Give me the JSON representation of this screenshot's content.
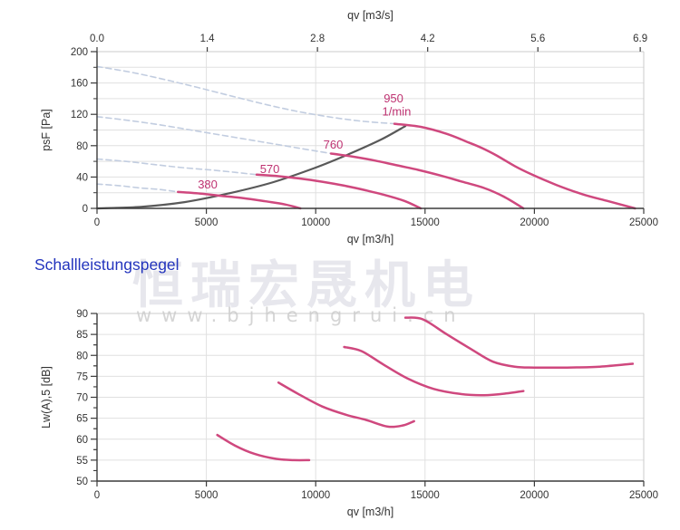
{
  "watermark": {
    "cjk": "恒瑞宏晟机电",
    "url": "www.bjhengrui.cn"
  },
  "heading": {
    "text": "Schallleistungspegel"
  },
  "colors": {
    "pink_curve": "#cf487e",
    "pink_label": "#bf3372",
    "dashed_curve": "#c2cde0",
    "gray_curve": "#595959",
    "grid": "#e0e0e0",
    "frame": "#cbcbcb",
    "axis": "#3b3b3b",
    "text": "#333333",
    "heading_blue": "#2334bd"
  },
  "chart_data": [
    {
      "name": "performance-chart",
      "type": "line",
      "title": "",
      "xlabel": "qv [m3/h]",
      "ylabel": "psF [Pa]",
      "top_xlabel": "qv [m3/s]",
      "xlim": [
        0,
        25000
      ],
      "ylim": [
        0,
        200
      ],
      "x_ticks": [
        0,
        5000,
        10000,
        15000,
        20000,
        25000
      ],
      "y_ticks": [
        0,
        40,
        80,
        120,
        160,
        200
      ],
      "x_grid": 5000,
      "y_grid": 20,
      "y_minor_step": 20,
      "top_ticks": [
        "0.0",
        "1.4",
        "2.8",
        "4.2",
        "5.6",
        "6.9"
      ],
      "top_tick_unit_scale": 3600,
      "legend": "none",
      "grid_on": true,
      "series": [
        {
          "name": "950-1min-unstable",
          "style": "dashed-blue",
          "points": [
            [
              0,
              181
            ],
            [
              1500,
              174
            ],
            [
              3000,
              165
            ],
            [
              4500,
              155
            ],
            [
              6200,
              143
            ],
            [
              7800,
              132
            ],
            [
              9300,
              123
            ],
            [
              10800,
              116
            ],
            [
              12200,
              111
            ],
            [
              13600,
              108
            ]
          ]
        },
        {
          "name": "760-1min-unstable",
          "style": "dashed-blue",
          "points": [
            [
              0,
              117
            ],
            [
              1500,
              112
            ],
            [
              3000,
              106
            ],
            [
              4500,
              99
            ],
            [
              6000,
              92
            ],
            [
              7500,
              85
            ],
            [
              9200,
              77
            ],
            [
              10700,
              70
            ]
          ]
        },
        {
          "name": "570-1min-unstable",
          "style": "dashed-blue",
          "points": [
            [
              0,
              63
            ],
            [
              1300,
              60
            ],
            [
              2600,
              56
            ],
            [
              3900,
              52
            ],
            [
              5200,
              49
            ],
            [
              6300,
              46
            ],
            [
              7300,
              43
            ]
          ]
        },
        {
          "name": "380-1min-unstable",
          "style": "dashed-blue",
          "points": [
            [
              0,
              31
            ],
            [
              1000,
              29
            ],
            [
              2000,
              26
            ],
            [
              2900,
              24
            ],
            [
              3700,
              21
            ]
          ]
        },
        {
          "name": "system-resistance-curve",
          "style": "solid-gray",
          "points": [
            [
              0,
              0
            ],
            [
              2000,
              2
            ],
            [
              4000,
              8
            ],
            [
              6000,
              19
            ],
            [
              8000,
              33
            ],
            [
              10000,
              52
            ],
            [
              11500,
              69
            ],
            [
              13000,
              88
            ],
            [
              14100,
              105
            ]
          ]
        },
        {
          "name": "950-1min",
          "style": "solid-pink",
          "points": [
            [
              13600,
              108
            ],
            [
              14800,
              104
            ],
            [
              16000,
              95
            ],
            [
              17000,
              84
            ],
            [
              17600,
              77
            ],
            [
              18300,
              67
            ],
            [
              19100,
              54
            ],
            [
              19900,
              43
            ],
            [
              21000,
              30
            ],
            [
              22200,
              18
            ],
            [
              23400,
              9
            ],
            [
              24600,
              0
            ]
          ]
        },
        {
          "name": "760-1min",
          "style": "solid-pink",
          "points": [
            [
              10700,
              70
            ],
            [
              11700,
              66
            ],
            [
              12700,
              61
            ],
            [
              13700,
              55
            ],
            [
              14700,
              49
            ],
            [
              15700,
              42
            ],
            [
              16700,
              34
            ],
            [
              17700,
              26
            ],
            [
              18600,
              15
            ],
            [
              19500,
              0
            ]
          ]
        },
        {
          "name": "570-1min",
          "style": "solid-pink",
          "points": [
            [
              7300,
              43
            ],
            [
              8300,
              41
            ],
            [
              9300,
              38
            ],
            [
              10300,
              34
            ],
            [
              11300,
              29
            ],
            [
              12300,
              23
            ],
            [
              13300,
              16
            ],
            [
              14100,
              9
            ],
            [
              14800,
              0
            ]
          ]
        },
        {
          "name": "380-1min",
          "style": "solid-pink",
          "points": [
            [
              3700,
              21
            ],
            [
              4700,
              19
            ],
            [
              5700,
              16
            ],
            [
              6700,
              13
            ],
            [
              7700,
              9
            ],
            [
              8600,
              5
            ],
            [
              9300,
              0
            ]
          ]
        }
      ],
      "annotations": [
        {
          "text": "380",
          "x": 5060,
          "y": 30
        },
        {
          "text": "570",
          "x": 7900,
          "y": 50
        },
        {
          "text": "760",
          "x": 10800,
          "y": 81
        },
        {
          "text": "950",
          "x": 13560,
          "y": 140
        },
        {
          "text": "1/min",
          "x": 13700,
          "y": 123
        }
      ]
    },
    {
      "name": "sound-chart",
      "type": "line",
      "title": "Schallleistungspegel",
      "xlabel": "qv [m3/h]",
      "ylabel": "Lw(A),5 [dB]",
      "xlim": [
        0,
        25000
      ],
      "ylim": [
        50,
        90
      ],
      "x_ticks": [
        0,
        5000,
        10000,
        15000,
        20000,
        25000
      ],
      "y_ticks": [
        50,
        55,
        60,
        65,
        70,
        75,
        80,
        85,
        90
      ],
      "x_grid": 5000,
      "y_grid": 5,
      "y_minor_step": 2.5,
      "legend": "none",
      "grid_on": true,
      "series": [
        {
          "name": "380-1min-sound",
          "style": "solid-pink",
          "points": [
            [
              5500,
              61
            ],
            [
              6300,
              58.5
            ],
            [
              7200,
              56.5
            ],
            [
              8200,
              55.3
            ],
            [
              9000,
              55
            ],
            [
              9700,
              55
            ]
          ]
        },
        {
          "name": "570-1min-sound",
          "style": "solid-pink",
          "points": [
            [
              8300,
              73.5
            ],
            [
              9200,
              70.8
            ],
            [
              10300,
              67.8
            ],
            [
              11400,
              65.8
            ],
            [
              12300,
              64.6
            ],
            [
              13300,
              63
            ],
            [
              14000,
              63.3
            ],
            [
              14500,
              64.3
            ]
          ]
        },
        {
          "name": "760-1min-sound",
          "style": "solid-pink",
          "points": [
            [
              11300,
              82
            ],
            [
              12100,
              81
            ],
            [
              13100,
              77.8
            ],
            [
              14200,
              74.5
            ],
            [
              15400,
              72
            ],
            [
              16600,
              70.8
            ],
            [
              17700,
              70.5
            ],
            [
              18700,
              70.9
            ],
            [
              19500,
              71.5
            ]
          ]
        },
        {
          "name": "950-1min-sound",
          "style": "solid-pink",
          "points": [
            [
              14100,
              89
            ],
            [
              14900,
              88.6
            ],
            [
              16000,
              85
            ],
            [
              17100,
              81.5
            ],
            [
              18100,
              78.5
            ],
            [
              19100,
              77.3
            ],
            [
              20000,
              77.1
            ],
            [
              21500,
              77.1
            ],
            [
              23000,
              77.3
            ],
            [
              24500,
              78
            ]
          ]
        }
      ],
      "annotations": []
    }
  ]
}
